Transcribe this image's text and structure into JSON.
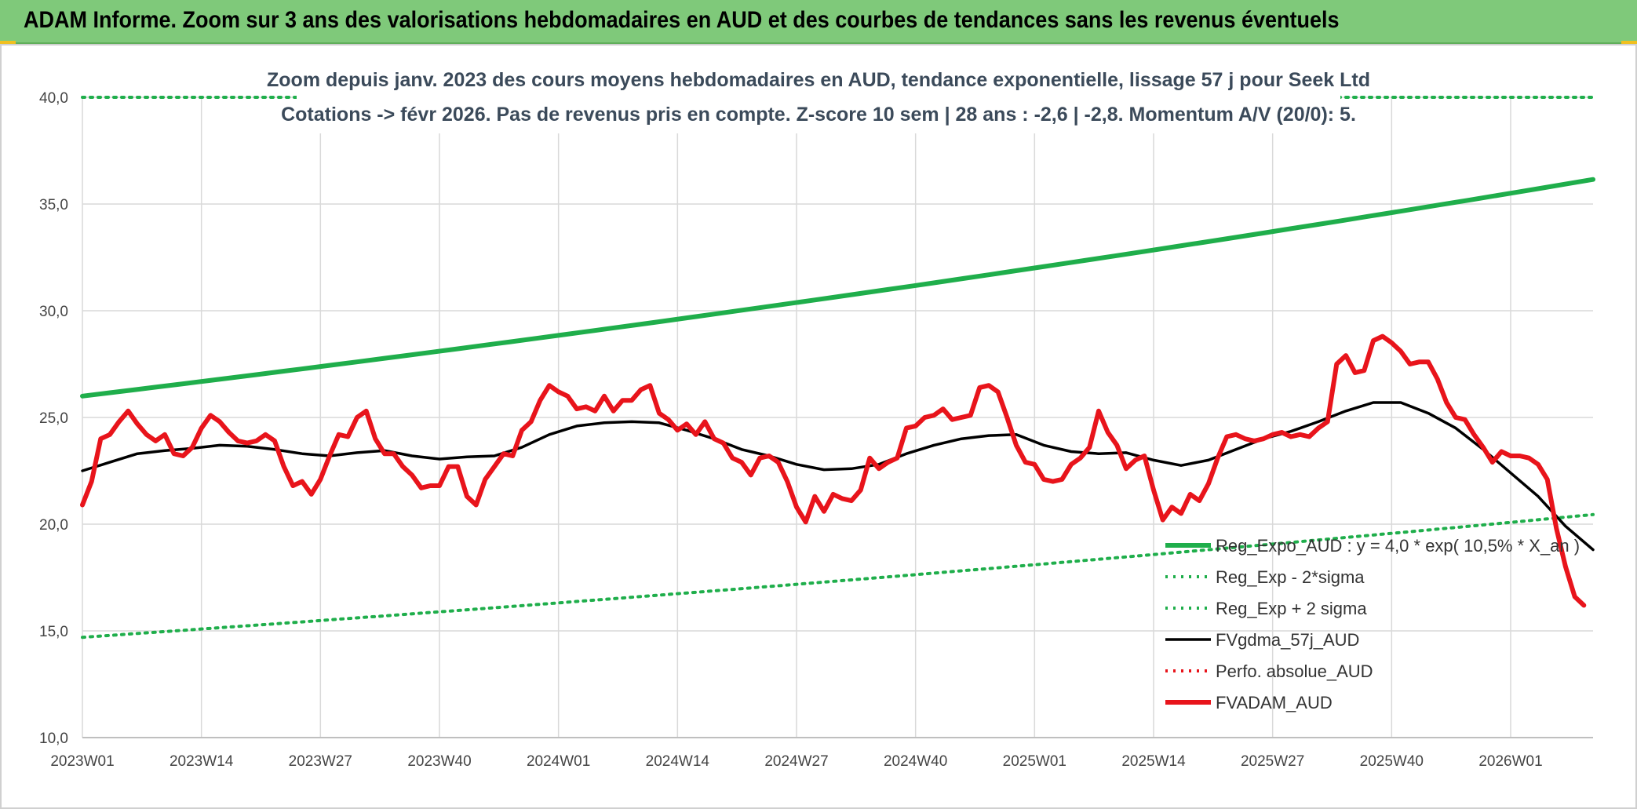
{
  "banner": {
    "title": "ADAM Informe. Zoom sur 3 ans des valorisations hebdomadaires en AUD et des courbes de tendances sans les revenus éventuels"
  },
  "chart_data": {
    "type": "line",
    "subtitle_lines": [
      "Zoom depuis janv. 2023 des cours moyens hebdomadaires en AUD, tendance exponentielle, lissage 57 j pour Seek Ltd",
      "Cotations -> févr 2026. Pas de revenus pris en compte. Z-score 10 sem | 28 ans : -2,6 | -2,8. Momentum A/V (20/0): 5."
    ],
    "ylim": [
      10,
      40
    ],
    "y_ticks": [
      "10,0",
      "15,0",
      "20,0",
      "25,0",
      "30,0",
      "35,0",
      "40,0"
    ],
    "y_tick_values": [
      10,
      15,
      20,
      25,
      30,
      35,
      40
    ],
    "x_ticks": [
      "2023W01",
      "2023W14",
      "2023W27",
      "2023W40",
      "2024W01",
      "2024W14",
      "2024W27",
      "2024W40",
      "2025W01",
      "2025W14",
      "2025W27",
      "2025W40",
      "2026W01"
    ],
    "x_tick_weeks": [
      0,
      13,
      26,
      39,
      52,
      65,
      78,
      91,
      104,
      117,
      130,
      143,
      156
    ],
    "x_range_weeks": [
      0,
      165
    ],
    "grid": true,
    "legend_position": "bottom-right",
    "series": [
      {
        "name": "Reg_Expo_AUD : y = 4,0 * exp( 10,5% * X_an )",
        "color": "#1fae4b",
        "style": "solid-thick",
        "week": [
          0,
          165
        ],
        "start": 26.0,
        "end": 36.15,
        "curve": "exponential"
      },
      {
        "name": "Reg_Exp - 2*sigma",
        "color": "#1fae4b",
        "style": "dotted",
        "week": [
          0,
          165
        ],
        "start": 14.7,
        "end": 20.45,
        "curve": "exponential"
      },
      {
        "name": "Reg_Exp + 2 sigma",
        "color": "#1fae4b",
        "style": "dotted",
        "week": [
          0,
          165
        ],
        "start": 40.0,
        "end": 40.0,
        "curve": "flat"
      },
      {
        "name": "FVgdma_57j_AUD",
        "color": "#000000",
        "style": "solid",
        "points": [
          [
            0,
            22.5
          ],
          [
            3,
            22.9
          ],
          [
            6,
            23.3
          ],
          [
            9,
            23.45
          ],
          [
            12,
            23.55
          ],
          [
            15,
            23.7
          ],
          [
            18,
            23.65
          ],
          [
            21,
            23.5
          ],
          [
            24,
            23.3
          ],
          [
            27,
            23.2
          ],
          [
            30,
            23.35
          ],
          [
            33,
            23.45
          ],
          [
            36,
            23.2
          ],
          [
            39,
            23.05
          ],
          [
            42,
            23.15
          ],
          [
            45,
            23.2
          ],
          [
            48,
            23.6
          ],
          [
            51,
            24.2
          ],
          [
            54,
            24.6
          ],
          [
            57,
            24.75
          ],
          [
            60,
            24.8
          ],
          [
            63,
            24.75
          ],
          [
            66,
            24.4
          ],
          [
            69,
            24.0
          ],
          [
            72,
            23.5
          ],
          [
            75,
            23.2
          ],
          [
            78,
            22.8
          ],
          [
            81,
            22.55
          ],
          [
            84,
            22.6
          ],
          [
            87,
            22.8
          ],
          [
            90,
            23.3
          ],
          [
            93,
            23.7
          ],
          [
            96,
            24.0
          ],
          [
            99,
            24.15
          ],
          [
            102,
            24.2
          ],
          [
            105,
            23.7
          ],
          [
            108,
            23.4
          ],
          [
            111,
            23.3
          ],
          [
            114,
            23.35
          ],
          [
            117,
            23.0
          ],
          [
            120,
            22.75
          ],
          [
            123,
            23.0
          ],
          [
            126,
            23.5
          ],
          [
            129,
            24.0
          ],
          [
            132,
            24.35
          ],
          [
            135,
            24.8
          ],
          [
            138,
            25.3
          ],
          [
            141,
            25.7
          ],
          [
            144,
            25.7
          ],
          [
            147,
            25.2
          ],
          [
            150,
            24.5
          ],
          [
            153,
            23.5
          ],
          [
            156,
            22.4
          ],
          [
            159,
            21.3
          ],
          [
            162,
            19.9
          ],
          [
            165,
            18.8
          ]
        ]
      },
      {
        "name": "Perfo. absolue_AUD",
        "color": "#e8141b",
        "style": "dotted",
        "points": []
      },
      {
        "name": "FVADAM_AUD",
        "color": "#e8141b",
        "style": "solid-thick",
        "points": [
          [
            0,
            20.9
          ],
          [
            1,
            22.0
          ],
          [
            2,
            24.0
          ],
          [
            3,
            24.2
          ],
          [
            4,
            24.8
          ],
          [
            5,
            25.3
          ],
          [
            6,
            24.7
          ],
          [
            7,
            24.2
          ],
          [
            8,
            23.9
          ],
          [
            9,
            24.2
          ],
          [
            10,
            23.3
          ],
          [
            11,
            23.2
          ],
          [
            12,
            23.6
          ],
          [
            13,
            24.5
          ],
          [
            14,
            25.1
          ],
          [
            15,
            24.8
          ],
          [
            16,
            24.3
          ],
          [
            17,
            23.9
          ],
          [
            18,
            23.8
          ],
          [
            19,
            23.9
          ],
          [
            20,
            24.2
          ],
          [
            21,
            23.9
          ],
          [
            22,
            22.7
          ],
          [
            23,
            21.8
          ],
          [
            24,
            22.0
          ],
          [
            25,
            21.4
          ],
          [
            26,
            22.1
          ],
          [
            27,
            23.2
          ],
          [
            28,
            24.2
          ],
          [
            29,
            24.1
          ],
          [
            30,
            25.0
          ],
          [
            31,
            25.3
          ],
          [
            32,
            24.0
          ],
          [
            33,
            23.3
          ],
          [
            34,
            23.3
          ],
          [
            35,
            22.7
          ],
          [
            36,
            22.3
          ],
          [
            37,
            21.7
          ],
          [
            38,
            21.8
          ],
          [
            39,
            21.8
          ],
          [
            40,
            22.7
          ],
          [
            41,
            22.7
          ],
          [
            42,
            21.3
          ],
          [
            43,
            20.9
          ],
          [
            44,
            22.1
          ],
          [
            45,
            22.7
          ],
          [
            46,
            23.3
          ],
          [
            47,
            23.2
          ],
          [
            48,
            24.4
          ],
          [
            49,
            24.8
          ],
          [
            50,
            25.8
          ],
          [
            51,
            26.5
          ],
          [
            52,
            26.2
          ],
          [
            53,
            26.0
          ],
          [
            54,
            25.4
          ],
          [
            55,
            25.5
          ],
          [
            56,
            25.3
          ],
          [
            57,
            26.0
          ],
          [
            58,
            25.3
          ],
          [
            59,
            25.8
          ],
          [
            60,
            25.8
          ],
          [
            61,
            26.3
          ],
          [
            62,
            26.5
          ],
          [
            63,
            25.2
          ],
          [
            64,
            24.9
          ],
          [
            65,
            24.4
          ],
          [
            66,
            24.7
          ],
          [
            67,
            24.2
          ],
          [
            68,
            24.8
          ],
          [
            69,
            24.0
          ],
          [
            70,
            23.8
          ],
          [
            71,
            23.1
          ],
          [
            72,
            22.9
          ],
          [
            73,
            22.3
          ],
          [
            74,
            23.1
          ],
          [
            75,
            23.2
          ],
          [
            76,
            22.9
          ],
          [
            77,
            22.0
          ],
          [
            78,
            20.8
          ],
          [
            79,
            20.1
          ],
          [
            80,
            21.3
          ],
          [
            81,
            20.6
          ],
          [
            82,
            21.4
          ],
          [
            83,
            21.2
          ],
          [
            84,
            21.1
          ],
          [
            85,
            21.6
          ],
          [
            86,
            23.1
          ],
          [
            87,
            22.6
          ],
          [
            88,
            22.9
          ],
          [
            89,
            23.1
          ],
          [
            90,
            24.5
          ],
          [
            91,
            24.6
          ],
          [
            92,
            25.0
          ],
          [
            93,
            25.1
          ],
          [
            94,
            25.4
          ],
          [
            95,
            24.9
          ],
          [
            96,
            25.0
          ],
          [
            97,
            25.1
          ],
          [
            98,
            26.4
          ],
          [
            99,
            26.5
          ],
          [
            100,
            26.2
          ],
          [
            101,
            25.0
          ],
          [
            102,
            23.7
          ],
          [
            103,
            22.9
          ],
          [
            104,
            22.8
          ],
          [
            105,
            22.1
          ],
          [
            106,
            22.0
          ],
          [
            107,
            22.1
          ],
          [
            108,
            22.8
          ],
          [
            109,
            23.1
          ],
          [
            110,
            23.6
          ],
          [
            111,
            25.3
          ],
          [
            112,
            24.3
          ],
          [
            113,
            23.7
          ],
          [
            114,
            22.6
          ],
          [
            115,
            23.0
          ],
          [
            116,
            23.2
          ],
          [
            117,
            21.6
          ],
          [
            118,
            20.2
          ],
          [
            119,
            20.8
          ],
          [
            120,
            20.5
          ],
          [
            121,
            21.4
          ],
          [
            122,
            21.1
          ],
          [
            123,
            21.9
          ],
          [
            124,
            23.1
          ],
          [
            125,
            24.1
          ],
          [
            126,
            24.2
          ],
          [
            127,
            24.0
          ],
          [
            128,
            23.9
          ],
          [
            129,
            24.0
          ],
          [
            130,
            24.2
          ],
          [
            131,
            24.3
          ],
          [
            132,
            24.1
          ],
          [
            133,
            24.2
          ],
          [
            134,
            24.1
          ],
          [
            135,
            24.5
          ],
          [
            136,
            24.8
          ],
          [
            137,
            27.5
          ],
          [
            138,
            27.9
          ],
          [
            139,
            27.1
          ],
          [
            140,
            27.2
          ],
          [
            141,
            28.6
          ],
          [
            142,
            28.8
          ],
          [
            143,
            28.5
          ],
          [
            144,
            28.1
          ],
          [
            145,
            27.5
          ],
          [
            146,
            27.6
          ],
          [
            147,
            27.6
          ],
          [
            148,
            26.8
          ],
          [
            149,
            25.7
          ],
          [
            150,
            25.0
          ],
          [
            151,
            24.9
          ],
          [
            152,
            24.2
          ],
          [
            153,
            23.6
          ],
          [
            154,
            22.9
          ],
          [
            155,
            23.4
          ],
          [
            156,
            23.2
          ],
          [
            157,
            23.2
          ],
          [
            158,
            23.1
          ],
          [
            159,
            22.8
          ],
          [
            160,
            22.1
          ],
          [
            161,
            19.8
          ],
          [
            162,
            18.0
          ],
          [
            163,
            16.6
          ],
          [
            164,
            16.2
          ]
        ]
      }
    ]
  }
}
